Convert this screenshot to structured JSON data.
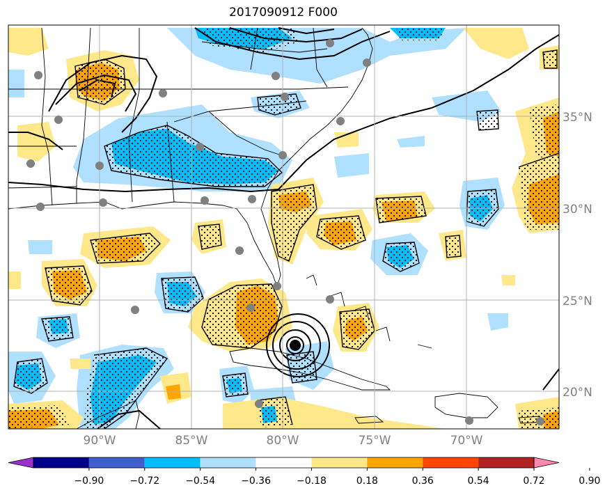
{
  "title": "2017090912 F000",
  "colors": {
    "strong_neg": "#00bfff",
    "weak_neg": "#b0e0ff",
    "weak_pos": "#ffe88a",
    "strong_pos": "#ffa500",
    "contour": "#000000",
    "station": "#808080",
    "grid": "#b0b0b0"
  },
  "lat_labels": [
    "35°N",
    "30°N",
    "25°N",
    "20°N"
  ],
  "lon_labels": [
    "90°W",
    "85°W",
    "80°W",
    "75°W",
    "70°W"
  ],
  "colorbar": {
    "colors": [
      "#9932cc",
      "#00008b",
      "#3f5fcf",
      "#00bfff",
      "#b0e0ff",
      "#ffffff",
      "#ffe88a",
      "#ffa500",
      "#ff4500",
      "#b22222",
      "#ff88b0"
    ],
    "labels": [
      "−0.90",
      "−0.72",
      "−0.54",
      "−0.36",
      "−0.18",
      "0.18",
      "0.36",
      "0.54",
      "0.72",
      "0.90"
    ]
  }
}
